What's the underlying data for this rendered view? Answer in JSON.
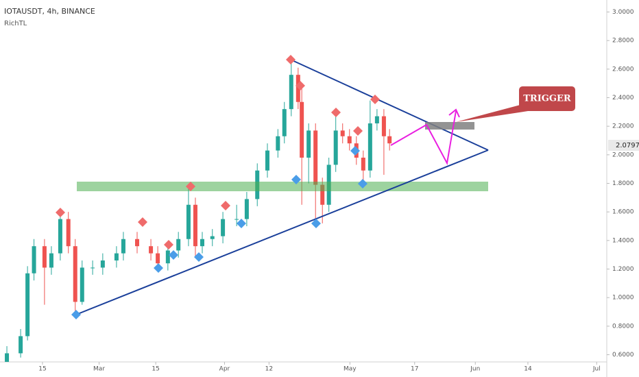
{
  "chart_data": {
    "type": "candlestick",
    "title": "IOTAUSDT, 4h, BINANCE",
    "subtitle": "RichTL",
    "annotation": "TRIGGER",
    "price_label": "2.0797",
    "x": [
      6.2,
      9.6,
      11.3,
      12.9,
      15.5,
      17.2,
      19.4,
      21.4,
      23.1,
      24.8,
      27.4,
      29.9,
      33.3,
      35.0,
      38.4,
      41.8,
      43.5,
      46.0,
      48.6,
      51.1,
      52.8,
      54.5,
      57.0,
      59.6,
      63.0,
      65.5,
      68.1,
      70.6,
      73.2,
      74.8,
      76.5,
      78.2,
      79.1,
      80.8,
      82.5,
      84.2,
      85.8,
      87.5,
      89.2,
      90.9,
      92.6,
      94.3,
      96.0,
      97.7,
      99.4,
      100.8
    ],
    "open": [
      0.55,
      0.61,
      0.73,
      1.17,
      1.36,
      1.21,
      1.31,
      1.55,
      1.36,
      0.97,
      1.21,
      1.21,
      1.26,
      1.31,
      1.41,
      1.36,
      1.31,
      1.24,
      1.33,
      1.41,
      1.65,
      1.36,
      1.41,
      1.43,
      1.55,
      1.55,
      1.69,
      1.89,
      2.03,
      2.13,
      2.32,
      2.56,
      2.37,
      1.98,
      2.17,
      1.79,
      1.65,
      1.93,
      2.17,
      2.13,
      2.08,
      1.98,
      1.89,
      2.22,
      2.27,
      2.13
    ],
    "high": [
      0.66,
      0.78,
      1.22,
      1.41,
      1.41,
      1.36,
      1.62,
      1.6,
      1.41,
      1.26,
      1.26,
      1.31,
      1.36,
      1.46,
      1.46,
      1.41,
      1.36,
      1.38,
      1.46,
      1.78,
      1.7,
      1.46,
      1.48,
      1.6,
      1.65,
      1.74,
      1.94,
      2.08,
      2.18,
      2.37,
      2.69,
      2.61,
      2.49,
      2.22,
      2.22,
      1.84,
      1.98,
      2.3,
      2.22,
      2.18,
      2.13,
      2.03,
      2.38,
      2.32,
      2.32,
      2.18
    ],
    "low": [
      0.55,
      0.58,
      0.7,
      1.12,
      0.95,
      1.16,
      1.26,
      1.31,
      0.88,
      0.95,
      1.16,
      1.16,
      1.21,
      1.26,
      1.31,
      1.26,
      1.2,
      1.19,
      1.28,
      1.36,
      1.29,
      1.31,
      1.36,
      1.38,
      1.5,
      1.5,
      1.64,
      1.84,
      1.98,
      2.08,
      2.27,
      2.32,
      1.65,
      1.8,
      1.55,
      1.52,
      1.6,
      1.88,
      2.08,
      2.03,
      1.93,
      1.8,
      1.84,
      2.17,
      1.86,
      2.03
    ],
    "close": [
      0.61,
      0.73,
      1.17,
      1.36,
      1.21,
      1.31,
      1.55,
      1.36,
      0.97,
      1.21,
      1.21,
      1.26,
      1.31,
      1.41,
      1.36,
      1.31,
      1.24,
      1.33,
      1.41,
      1.65,
      1.36,
      1.41,
      1.43,
      1.55,
      1.55,
      1.69,
      1.89,
      2.03,
      2.13,
      2.32,
      2.56,
      2.37,
      1.98,
      2.17,
      1.79,
      1.65,
      1.93,
      2.17,
      2.13,
      2.08,
      1.98,
      1.89,
      2.22,
      2.27,
      2.13,
      2.08
    ],
    "up_color": "#26a69a",
    "down_color": "#ef5350",
    "xlim": [
      4.5,
      154.5
    ],
    "xticks": [
      {
        "value": 15,
        "label": "15"
      },
      {
        "value": 29,
        "label": "Mar"
      },
      {
        "value": 43,
        "label": "15"
      },
      {
        "value": 60,
        "label": "Apr"
      },
      {
        "value": 71,
        "label": "12"
      },
      {
        "value": 91,
        "label": "May"
      },
      {
        "value": 107,
        "label": "17"
      },
      {
        "value": 122,
        "label": "Jun"
      },
      {
        "value": 135,
        "label": "14"
      },
      {
        "value": 152,
        "label": "Jul"
      }
    ],
    "ylim": [
      0.54,
      3.06
    ],
    "yticks": [
      {
        "value": 0.6,
        "label": "0.6000"
      },
      {
        "value": 0.8,
        "label": "0.8000"
      },
      {
        "value": 1.0,
        "label": "1.0000"
      },
      {
        "value": 1.2,
        "label": "1.2000"
      },
      {
        "value": 1.4,
        "label": "1.4000"
      },
      {
        "value": 1.6,
        "label": "1.6000"
      },
      {
        "value": 1.8,
        "label": "1.8000"
      },
      {
        "value": 2.0,
        "label": "2.0000"
      },
      {
        "value": 2.2,
        "label": "2.2000"
      },
      {
        "value": 2.4,
        "label": "2.4000"
      },
      {
        "value": 2.6,
        "label": "2.6000"
      },
      {
        "value": 2.8,
        "label": "2.8000"
      },
      {
        "value": 3.0,
        "label": "3.0000"
      }
    ]
  }
}
